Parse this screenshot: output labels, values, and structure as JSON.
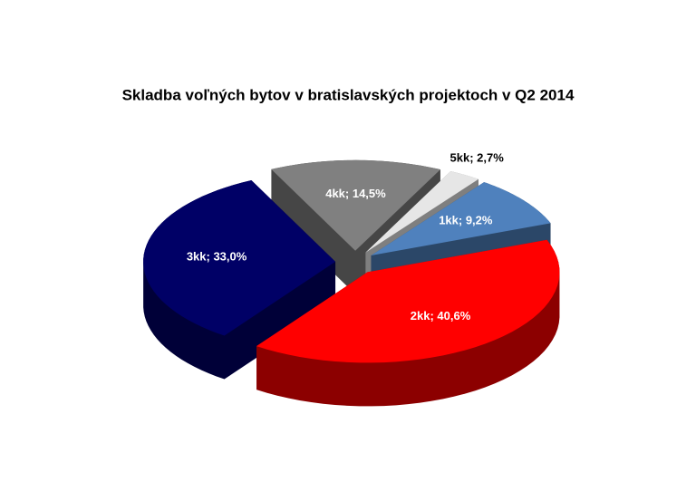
{
  "chart_data": {
    "type": "pie3d",
    "title": "Skladba voľných  bytov v bratislavských projektoch v Q2  2014",
    "categories": [
      "1kk",
      "2kk",
      "3kk",
      "4kk",
      "5kk"
    ],
    "values": [
      9.2,
      40.6,
      33.0,
      14.5,
      2.7
    ],
    "value_labels": [
      "1kk; 9,2%",
      "2kk; 40,6%",
      "3kk; 33,0%",
      "4kk; 14,5%",
      "5kk; 2,7%"
    ],
    "colors": [
      "#4f81bd",
      "#ff0000",
      "#000066",
      "#808080",
      "#e6e6e6"
    ]
  }
}
